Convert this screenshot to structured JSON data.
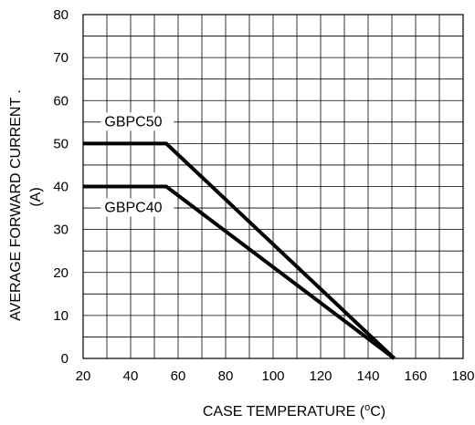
{
  "chart_data": {
    "type": "line",
    "xlabel": "CASE TEMPERATURE (",
    "xlabel_sup": "o",
    "xlabel_end": "C)",
    "ylabel_line1": "AVERAGE FORWARD CURRENT .",
    "ylabel_line2": "(A)",
    "xlim": [
      20,
      180
    ],
    "ylim": [
      0,
      80
    ],
    "x_ticks": [
      20,
      40,
      60,
      80,
      100,
      120,
      140,
      160,
      180
    ],
    "y_ticks": [
      0,
      10,
      20,
      30,
      40,
      50,
      60,
      70,
      80
    ],
    "grid": true,
    "series": [
      {
        "name": "GBPC50",
        "x": [
          20,
          55,
          151
        ],
        "y": [
          50,
          50,
          0
        ]
      },
      {
        "name": "GBPC40",
        "x": [
          20,
          55,
          151
        ],
        "y": [
          40,
          40,
          0
        ]
      }
    ]
  }
}
